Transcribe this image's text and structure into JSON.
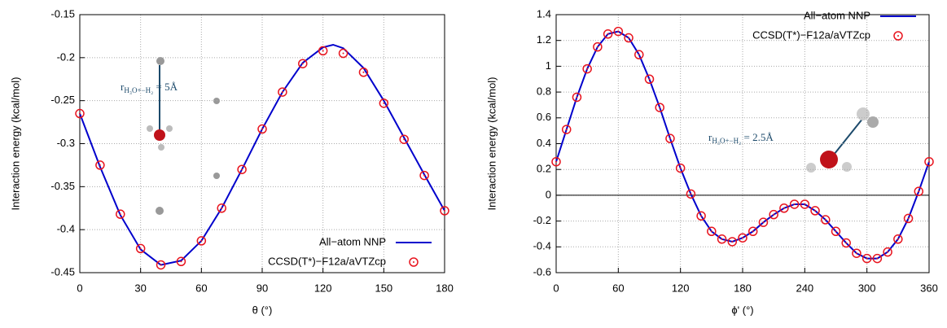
{
  "chart_data": [
    {
      "type": "line",
      "xlabel": "θ (°)",
      "ylabel": "Interaction energy (kcal/mol)",
      "xlim": [
        0,
        180
      ],
      "ylim": [
        -0.45,
        -0.15
      ],
      "xticks": [
        0,
        30,
        60,
        90,
        120,
        150,
        180
      ],
      "yticks": [
        -0.45,
        -0.4,
        -0.35,
        -0.3,
        -0.25,
        -0.2,
        -0.15
      ],
      "grid": true,
      "legend": "bottom right",
      "annotation": {
        "main": "r",
        "sub": "H₃O+−H₂",
        "rest": " = 5Å"
      },
      "series": [
        {
          "name": "All−atom NNP",
          "color": "#0000cc",
          "style": "line",
          "x": [
            0,
            10,
            20,
            30,
            40,
            50,
            60,
            70,
            80,
            90,
            100,
            110,
            120,
            125,
            130,
            140,
            150,
            160,
            170,
            180
          ],
          "values": [
            -0.265,
            -0.327,
            -0.383,
            -0.423,
            -0.441,
            -0.436,
            -0.413,
            -0.375,
            -0.33,
            -0.283,
            -0.24,
            -0.206,
            -0.188,
            -0.185,
            -0.189,
            -0.212,
            -0.25,
            -0.293,
            -0.336,
            -0.378
          ]
        },
        {
          "name": "CCSD(T*)−F12a/aVTZcp",
          "color": "#e8141e",
          "style": "points",
          "x": [
            0,
            10,
            20,
            30,
            40,
            50,
            60,
            70,
            80,
            90,
            100,
            110,
            120,
            130,
            140,
            150,
            160,
            170,
            180
          ],
          "values": [
            -0.265,
            -0.325,
            -0.382,
            -0.422,
            -0.441,
            -0.437,
            -0.413,
            -0.375,
            -0.33,
            -0.283,
            -0.24,
            -0.207,
            -0.192,
            -0.195,
            -0.217,
            -0.253,
            -0.295,
            -0.337,
            -0.378
          ]
        }
      ]
    },
    {
      "type": "line",
      "xlabel": "ϕ' (°)",
      "ylabel": "Interaction energy (kcal/mol)",
      "xlim": [
        0,
        360
      ],
      "ylim": [
        -0.6,
        1.4
      ],
      "xticks": [
        0,
        60,
        120,
        180,
        240,
        300,
        360
      ],
      "yticks": [
        -0.6,
        -0.4,
        -0.2,
        0,
        0.2,
        0.4,
        0.6,
        0.8,
        1,
        1.2,
        1.4
      ],
      "grid": true,
      "zero_line": true,
      "legend": "top right",
      "annotation": {
        "main": "r",
        "sub": "H₃O+−H₂",
        "rest": " = 2.5Å"
      },
      "series": [
        {
          "name": "All−atom NNP",
          "color": "#0000cc",
          "style": "line",
          "x": [
            0,
            10,
            20,
            30,
            40,
            50,
            60,
            70,
            80,
            90,
            100,
            110,
            120,
            130,
            140,
            150,
            160,
            170,
            180,
            190,
            200,
            210,
            220,
            230,
            240,
            250,
            260,
            270,
            280,
            290,
            300,
            310,
            320,
            330,
            340,
            350,
            360
          ],
          "values": [
            0.26,
            0.51,
            0.76,
            0.98,
            1.15,
            1.25,
            1.27,
            1.22,
            1.09,
            0.9,
            0.68,
            0.44,
            0.21,
            0.01,
            -0.16,
            -0.28,
            -0.34,
            -0.36,
            -0.33,
            -0.28,
            -0.21,
            -0.15,
            -0.1,
            -0.07,
            -0.07,
            -0.12,
            -0.19,
            -0.28,
            -0.37,
            -0.45,
            -0.49,
            -0.49,
            -0.44,
            -0.34,
            -0.18,
            0.03,
            0.26
          ]
        },
        {
          "name": "CCSD(T*)−F12a/aVTZcp",
          "color": "#e8141e",
          "style": "points",
          "x": [
            0,
            10,
            20,
            30,
            40,
            50,
            60,
            70,
            80,
            90,
            100,
            110,
            120,
            130,
            140,
            150,
            160,
            170,
            180,
            190,
            200,
            210,
            220,
            230,
            240,
            250,
            260,
            270,
            280,
            290,
            300,
            310,
            320,
            330,
            340,
            350,
            360
          ],
          "values": [
            0.26,
            0.51,
            0.76,
            0.98,
            1.15,
            1.25,
            1.27,
            1.22,
            1.09,
            0.9,
            0.68,
            0.44,
            0.21,
            0.01,
            -0.16,
            -0.28,
            -0.34,
            -0.36,
            -0.33,
            -0.28,
            -0.21,
            -0.15,
            -0.1,
            -0.07,
            -0.07,
            -0.12,
            -0.19,
            -0.28,
            -0.37,
            -0.45,
            -0.49,
            -0.49,
            -0.44,
            -0.34,
            -0.18,
            0.03,
            0.26
          ]
        }
      ]
    }
  ]
}
